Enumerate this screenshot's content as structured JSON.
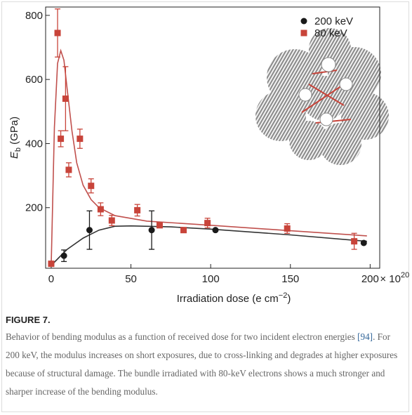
{
  "chart_data": {
    "type": "scatter",
    "ylabel_parts": [
      "E",
      "b",
      " (GPa)"
    ],
    "xlabel_parts": [
      "Irradiation dose (e cm",
      "−2",
      ")"
    ],
    "x_multiplier_parts": [
      "× 10",
      "20"
    ],
    "xlim": [
      -3.5,
      206
    ],
    "ylim": [
      11,
      826
    ],
    "xticks": [
      0,
      50,
      100,
      150,
      200
    ],
    "yticks": [
      200,
      400,
      600,
      800
    ],
    "series": [
      {
        "name": "200 keV",
        "color": "#1a1a1a",
        "marker": "circle",
        "x": [
          0,
          8,
          24,
          63,
          103,
          196
        ],
        "values": [
          25,
          50,
          130,
          130,
          130,
          90
        ],
        "errors": [
          null,
          18,
          60,
          60,
          null,
          null
        ]
      },
      {
        "name": "80 keV",
        "color": "#c8443a",
        "marker": "square",
        "x": [
          0,
          4,
          6,
          9,
          11,
          18,
          25,
          31,
          38,
          54,
          68,
          83,
          98,
          148,
          190
        ],
        "values": [
          25,
          745,
          415,
          540,
          318,
          415,
          268,
          195,
          160,
          192,
          145,
          130,
          152,
          135,
          95
        ],
        "errors": [
          null,
          75,
          25,
          100,
          22,
          30,
          22,
          20,
          16,
          18,
          null,
          null,
          15,
          15,
          25
        ]
      }
    ],
    "fit_curves": [
      {
        "color": "#333333",
        "x": [
          0,
          5,
          10,
          20,
          30,
          40,
          50,
          75,
          100,
          150,
          198
        ],
        "values": [
          20,
          45,
          70,
          105,
          130,
          142,
          143,
          140,
          133,
          115,
          95
        ]
      },
      {
        "color": "#c0504d",
        "x": [
          0,
          2,
          4,
          6,
          8,
          10,
          13,
          16,
          20,
          25,
          30,
          40,
          60,
          100,
          150,
          198
        ],
        "values": [
          25,
          450,
          650,
          690,
          660,
          570,
          440,
          340,
          270,
          225,
          200,
          175,
          158,
          145,
          128,
          112
        ]
      }
    ]
  },
  "caption": {
    "label": "FIGURE 7.",
    "text_before": "Behavior of bending modulus as a function of received dose for two incident electron energies ",
    "reference": "[94]",
    "text_after": ". For 200 keV, the modulus increases on short exposures, due to cross-linking and degrades at higher exposures because of structural damage. The bundle irradiated with 80-keV electrons shows a much stronger and sharper increase of the bending modulus."
  }
}
